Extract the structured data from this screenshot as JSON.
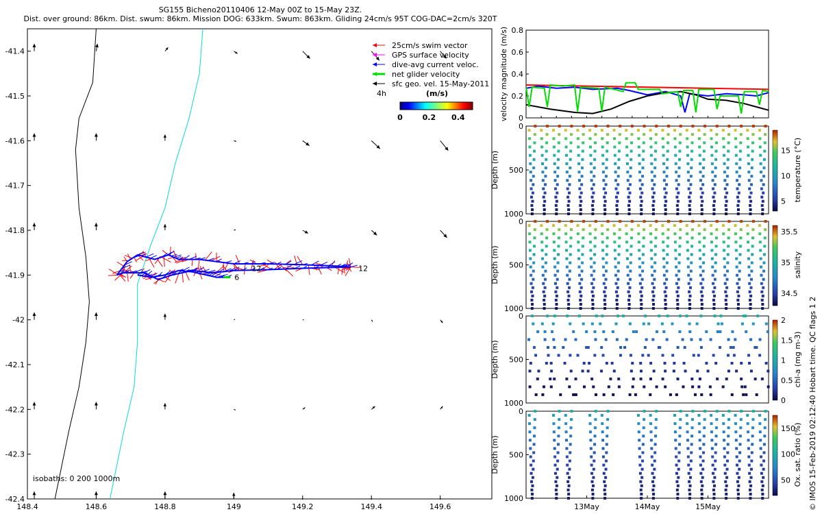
{
  "title": {
    "line1": "SG155 Bicheno20110406 12-May 00Z to 15-May 23Z.",
    "line2": "Dist. over ground: 86km. Dist. swum: 86km. Mission DOG: 633km. Swum: 863km. Gliding 24cm/s 95T COG-DAC=2cm/s 320T"
  },
  "side_label": "© IMOS 15-Feb-2019 02:12:40 Hobart time. QC flags 1  2",
  "chart_data": [
    {
      "type": "scatter",
      "name": "map",
      "xlim": [
        148.4,
        149.75
      ],
      "ylim": [
        -42.4,
        -41.35
      ],
      "xticks": [
        "148.4",
        "148.6",
        "148.8",
        "149",
        "149.2",
        "149.4",
        "149.6"
      ],
      "yticks": [
        "-41.4",
        "-41.5",
        "-41.6",
        "-41.7",
        "-41.8",
        "-41.9",
        "-42",
        "-42.1",
        "-42.2",
        "-42.3",
        "-42.4"
      ],
      "legend": {
        "entries": [
          "25cm/s swim vector",
          "GPS surface velocity",
          "dive-avg current veloc.",
          "net glider velocity",
          "sfc geo. vel. 15-May-2011"
        ],
        "colors": [
          "#ff0000",
          "#ff00ff",
          "#0000ff",
          "#00dd00",
          "#000000"
        ],
        "extra_label": "4h",
        "colorbar_unit": "(m/s)",
        "colorbar_ticks": [
          "0",
          "0.2",
          "0.4"
        ]
      },
      "isobath_label": "isobaths: 0   200  1000m",
      "isobath_colors": {
        "200m": "#000000",
        "1000m": "#00dddd"
      },
      "isobath_200m": [
        [
          148.6,
          -41.35
        ],
        [
          148.59,
          -41.47
        ],
        [
          148.55,
          -41.55
        ],
        [
          148.54,
          -41.62
        ],
        [
          148.55,
          -41.75
        ],
        [
          148.57,
          -41.86
        ],
        [
          148.58,
          -41.96
        ],
        [
          148.57,
          -42.05
        ],
        [
          148.55,
          -42.15
        ],
        [
          148.52,
          -42.25
        ],
        [
          148.48,
          -42.4
        ]
      ],
      "isobath_1000m": [
        [
          148.91,
          -41.35
        ],
        [
          148.9,
          -41.45
        ],
        [
          148.87,
          -41.55
        ],
        [
          148.83,
          -41.65
        ],
        [
          148.8,
          -41.75
        ],
        [
          148.76,
          -41.83
        ],
        [
          148.72,
          -41.92
        ],
        [
          148.72,
          -42.05
        ],
        [
          148.71,
          -42.15
        ],
        [
          148.68,
          -42.25
        ],
        [
          148.64,
          -42.4
        ]
      ],
      "track_labels": [
        {
          "text": "12",
          "x": 149.35,
          "y": -41.885
        },
        {
          "text": "12",
          "x": 149.04,
          "y": -41.885
        },
        {
          "text": "6",
          "x": 148.99,
          "y": -41.905
        }
      ],
      "track_outbound_north": [
        [
          148.66,
          -41.9
        ],
        [
          148.69,
          -41.87
        ],
        [
          148.72,
          -41.855
        ],
        [
          148.77,
          -41.865
        ],
        [
          148.81,
          -41.855
        ],
        [
          148.84,
          -41.865
        ],
        [
          148.9,
          -41.865
        ],
        [
          149,
          -41.875
        ],
        [
          149.1,
          -41.875
        ],
        [
          149.2,
          -41.877
        ],
        [
          149.3,
          -41.88
        ],
        [
          149.34,
          -41.882
        ]
      ],
      "track_return_south": [
        [
          149.34,
          -41.882
        ],
        [
          149.2,
          -41.885
        ],
        [
          149.1,
          -41.888
        ],
        [
          149,
          -41.89
        ],
        [
          148.94,
          -41.895
        ],
        [
          148.88,
          -41.89
        ],
        [
          148.82,
          -41.9
        ],
        [
          148.78,
          -41.91
        ],
        [
          148.74,
          -41.895
        ],
        [
          148.68,
          -41.895
        ],
        [
          148.66,
          -41.9
        ]
      ],
      "track_loop": [
        [
          148.72,
          -41.9
        ],
        [
          148.76,
          -41.905
        ],
        [
          148.8,
          -41.9
        ],
        [
          148.84,
          -41.89
        ],
        [
          148.88,
          -41.893
        ],
        [
          148.92,
          -41.9
        ],
        [
          148.95,
          -41.905
        ],
        [
          148.99,
          -41.905
        ]
      ],
      "sfc_vectors": [
        [
          148.42,
          -41.4,
          0,
          0.012
        ],
        [
          148.6,
          -41.4,
          0.002,
          0.012
        ],
        [
          148.8,
          -41.4,
          0.005,
          0.006
        ],
        [
          149,
          -41.4,
          0.006,
          -0.004
        ],
        [
          149.2,
          -41.4,
          0.012,
          -0.012
        ],
        [
          149.4,
          -41.4,
          0.013,
          -0.015
        ],
        [
          149.6,
          -41.4,
          0.01,
          -0.012
        ],
        [
          148.42,
          -41.6,
          0,
          0.012
        ],
        [
          148.6,
          -41.6,
          0,
          0.012
        ],
        [
          148.8,
          -41.6,
          0,
          0.01
        ],
        [
          149,
          -41.6,
          0.004,
          -0.001
        ],
        [
          149.2,
          -41.6,
          0.011,
          -0.008
        ],
        [
          149.4,
          -41.6,
          0.014,
          -0.013
        ],
        [
          149.6,
          -41.6,
          0.013,
          -0.016
        ],
        [
          148.42,
          -41.8,
          0,
          0.012
        ],
        [
          148.6,
          -41.8,
          0,
          0.012
        ],
        [
          148.8,
          -41.8,
          0,
          0.01
        ],
        [
          149,
          -41.8,
          0.003,
          0.001
        ],
        [
          149.2,
          -41.8,
          0.009,
          -0.005
        ],
        [
          149.4,
          -41.8,
          0.009,
          -0.008
        ],
        [
          149.6,
          -41.8,
          0.011,
          -0.012
        ],
        [
          148.42,
          -42,
          0,
          0.012
        ],
        [
          148.6,
          -42,
          0,
          0.012
        ],
        [
          148.8,
          -42,
          0,
          0.01
        ],
        [
          149,
          -42,
          0.002,
          0.001
        ],
        [
          149.2,
          -42,
          0.002,
          0
        ],
        [
          149.4,
          -42,
          0.002,
          -0.003
        ],
        [
          149.6,
          -42,
          0.004,
          -0.005
        ],
        [
          148.42,
          -42.2,
          0,
          0.012
        ],
        [
          148.6,
          -42.2,
          0,
          0.012
        ],
        [
          148.8,
          -42.2,
          0,
          0.01
        ],
        [
          149,
          -42.2,
          0.003,
          -0.001
        ],
        [
          149.2,
          -42.2,
          0.004,
          0.003
        ],
        [
          149.4,
          -42.2,
          0.006,
          0.005
        ],
        [
          149.6,
          -42.2,
          0.004,
          0.005
        ],
        [
          148.42,
          -42.4,
          0,
          0.012
        ],
        [
          148.6,
          -42.4,
          0,
          0.012
        ],
        [
          148.8,
          -42.4,
          0,
          0.012
        ],
        [
          149,
          -42.4,
          0,
          0.01
        ],
        [
          149.2,
          -42.4,
          0,
          0
        ],
        [
          149.4,
          -42.4,
          0,
          0
        ],
        [
          149.6,
          -42.4,
          0,
          0
        ]
      ]
    },
    {
      "type": "line",
      "name": "velocity",
      "ylabel": "velocity magnitude (m/s)",
      "xlim": [
        12.0,
        16.0
      ],
      "ylim": [
        0,
        0.8
      ],
      "yticks": [
        "0",
        "0.2",
        "0.4",
        "0.6",
        "0.8"
      ],
      "series": [
        {
          "color": "#ff0000",
          "points": [
            [
              12,
              0.3
            ],
            [
              16,
              0.26
            ]
          ]
        },
        {
          "color": "#0000ff",
          "points": [
            [
              12,
              0.27
            ],
            [
              12.2,
              0.29
            ],
            [
              12.5,
              0.27
            ],
            [
              12.8,
              0.28
            ],
            [
              13.1,
              0.26
            ],
            [
              13.5,
              0.27
            ],
            [
              13.7,
              0.25
            ],
            [
              14,
              0.21
            ],
            [
              14.3,
              0.24
            ],
            [
              14.55,
              0.2
            ],
            [
              14.62,
              0.05
            ],
            [
              14.7,
              0.22
            ],
            [
              15,
              0.2
            ],
            [
              15.3,
              0.22
            ],
            [
              15.6,
              0.21
            ],
            [
              15.8,
              0.2
            ],
            [
              16,
              0.23
            ]
          ]
        },
        {
          "color": "#000000",
          "points": [
            [
              12,
              0.12
            ],
            [
              12.4,
              0.08
            ],
            [
              12.8,
              0.05
            ],
            [
              13.1,
              0.04
            ],
            [
              13.4,
              0.08
            ],
            [
              13.7,
              0.15
            ],
            [
              14,
              0.2
            ],
            [
              14.3,
              0.23
            ],
            [
              14.55,
              0.24
            ],
            [
              14.8,
              0.21
            ],
            [
              15,
              0.17
            ],
            [
              15.3,
              0.16
            ],
            [
              15.6,
              0.13
            ],
            [
              15.8,
              0.1
            ],
            [
              16,
              0.07
            ]
          ]
        },
        {
          "color": "#00dd00",
          "points": [
            [
              12,
              0.28
            ],
            [
              12.05,
              0.1
            ],
            [
              12.1,
              0.28
            ],
            [
              12.3,
              0.27
            ],
            [
              12.35,
              0.1
            ],
            [
              12.4,
              0.3
            ],
            [
              12.6,
              0.29
            ],
            [
              12.8,
              0.3
            ],
            [
              12.85,
              0.06
            ],
            [
              12.9,
              0.28
            ],
            [
              13.2,
              0.27
            ],
            [
              13.25,
              0.06
            ],
            [
              13.3,
              0.28
            ],
            [
              13.6,
              0.24
            ],
            [
              13.65,
              0.32
            ],
            [
              13.8,
              0.32
            ],
            [
              13.85,
              0.26
            ],
            [
              14.2,
              0.26
            ],
            [
              14.25,
              0.22
            ],
            [
              14.5,
              0.24
            ],
            [
              14.55,
              0.1
            ],
            [
              14.6,
              0.25
            ],
            [
              14.75,
              0.25
            ],
            [
              14.8,
              0.05
            ],
            [
              14.85,
              0.26
            ],
            [
              15.05,
              0.26
            ],
            [
              15.1,
              0.26
            ],
            [
              15.15,
              0.08
            ],
            [
              15.2,
              0.2
            ],
            [
              15.5,
              0.2
            ],
            [
              15.55,
              0.04
            ],
            [
              15.6,
              0.24
            ],
            [
              15.8,
              0.24
            ],
            [
              15.85,
              0.12
            ],
            [
              15.9,
              0.25
            ],
            [
              16,
              0.24
            ]
          ]
        }
      ]
    },
    {
      "type": "scatter",
      "name": "temperature",
      "ylabel": "Depth (m)",
      "cbar_label": "temperature (°C)",
      "ylim": [
        1000,
        0
      ],
      "yticks": [
        "0",
        "500",
        "1000"
      ],
      "clim": [
        3,
        19
      ],
      "cbar_ticks": [
        "5",
        "10",
        "15"
      ],
      "profiles": {
        "count": 20,
        "depth_max": 1000,
        "v_top": 18.5,
        "v_bottom": 3.5,
        "pattern": "full"
      }
    },
    {
      "type": "scatter",
      "name": "salinity",
      "ylabel": "Depth (m)",
      "cbar_label": "salinity",
      "ylim": [
        1000,
        0
      ],
      "yticks": [
        "0",
        "500",
        "1000"
      ],
      "clim": [
        34.3,
        35.6
      ],
      "cbar_ticks": [
        "34.5",
        "35",
        "35.5"
      ],
      "profiles": {
        "count": 20,
        "depth_max": 1000,
        "v_top": 35.55,
        "v_bottom": 34.35,
        "pattern": "full"
      }
    },
    {
      "type": "scatter",
      "name": "chl-a",
      "ylabel": "Depth (m)",
      "cbar_label": "chl-a (mg m-3)",
      "ylim": [
        1000,
        0
      ],
      "yticks": [
        "0",
        "500",
        "1000"
      ],
      "clim": [
        0,
        2
      ],
      "cbar_ticks": [
        "0",
        "0.5",
        "1",
        "1.5",
        "2"
      ],
      "profiles": {
        "count": 20,
        "depth_max": 950,
        "v_top": 1.0,
        "v_bottom": 0.0,
        "pattern": "sparse"
      }
    },
    {
      "type": "scatter",
      "name": "oxygen",
      "ylabel": "Depth (m)",
      "cbar_label": "Ox. sat. ratio (%)",
      "ylim": [
        1000,
        0
      ],
      "yticks": [
        "0",
        "500",
        "1000"
      ],
      "clim": [
        20,
        175
      ],
      "cbar_ticks": [
        "50",
        "100",
        "150"
      ],
      "xticks": [
        "13May",
        "14May",
        "15May"
      ],
      "profiles": {
        "count": 20,
        "depth_max": 1000,
        "v_top": 95,
        "v_bottom": 30,
        "pattern": "gaps"
      }
    }
  ]
}
